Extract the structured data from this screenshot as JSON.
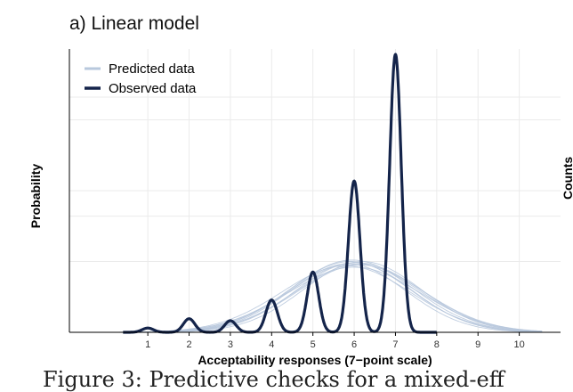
{
  "panel_title": "a) Linear model",
  "caption_fragment": "Figure 3: Predictive checks for a mixed-eff",
  "next_panel_ylabel": "Counts",
  "colors": {
    "predicted": "#b8c8dd",
    "observed": "#14244a",
    "grid": "#ebebeb",
    "axis": "#000000"
  },
  "chart_data": {
    "type": "line",
    "title": "a) Linear model",
    "xlabel": "Acceptability responses (7−point scale)",
    "ylabel": "Probability",
    "xlim": [
      -0.9,
      11.0
    ],
    "ylim": [
      0,
      1.0
    ],
    "x_ticks": [
      1,
      2,
      3,
      4,
      5,
      6,
      7,
      8,
      9,
      10
    ],
    "grid": true,
    "legend": {
      "position": "top-left",
      "entries": [
        "Predicted data",
        "Observed data"
      ]
    },
    "series": [
      {
        "name": "Observed data",
        "style": "thick-dark",
        "peaks": [
          {
            "x": 1,
            "y": 0.015
          },
          {
            "x": 2,
            "y": 0.048
          },
          {
            "x": 3,
            "y": 0.041
          },
          {
            "x": 4,
            "y": 0.114
          },
          {
            "x": 5,
            "y": 0.213
          },
          {
            "x": 6,
            "y": 0.534
          },
          {
            "x": 7,
            "y": 0.981
          }
        ],
        "peak_width": 0.14
      },
      {
        "name": "Predicted data",
        "style": "thin-light",
        "draws": [
          {
            "mean": 5.9,
            "sd": 1.45,
            "peak": 0.25
          },
          {
            "mean": 6.0,
            "sd": 1.4,
            "peak": 0.245
          },
          {
            "mean": 6.1,
            "sd": 1.5,
            "peak": 0.24
          },
          {
            "mean": 5.8,
            "sd": 1.55,
            "peak": 0.235
          },
          {
            "mean": 6.2,
            "sd": 1.42,
            "peak": 0.25
          },
          {
            "mean": 6.0,
            "sd": 1.6,
            "peak": 0.23
          },
          {
            "mean": 5.95,
            "sd": 1.48,
            "peak": 0.255
          },
          {
            "mean": 6.15,
            "sd": 1.52,
            "peak": 0.238
          },
          {
            "mean": 5.85,
            "sd": 1.4,
            "peak": 0.242
          },
          {
            "mean": 6.05,
            "sd": 1.58,
            "peak": 0.246
          }
        ]
      }
    ]
  }
}
